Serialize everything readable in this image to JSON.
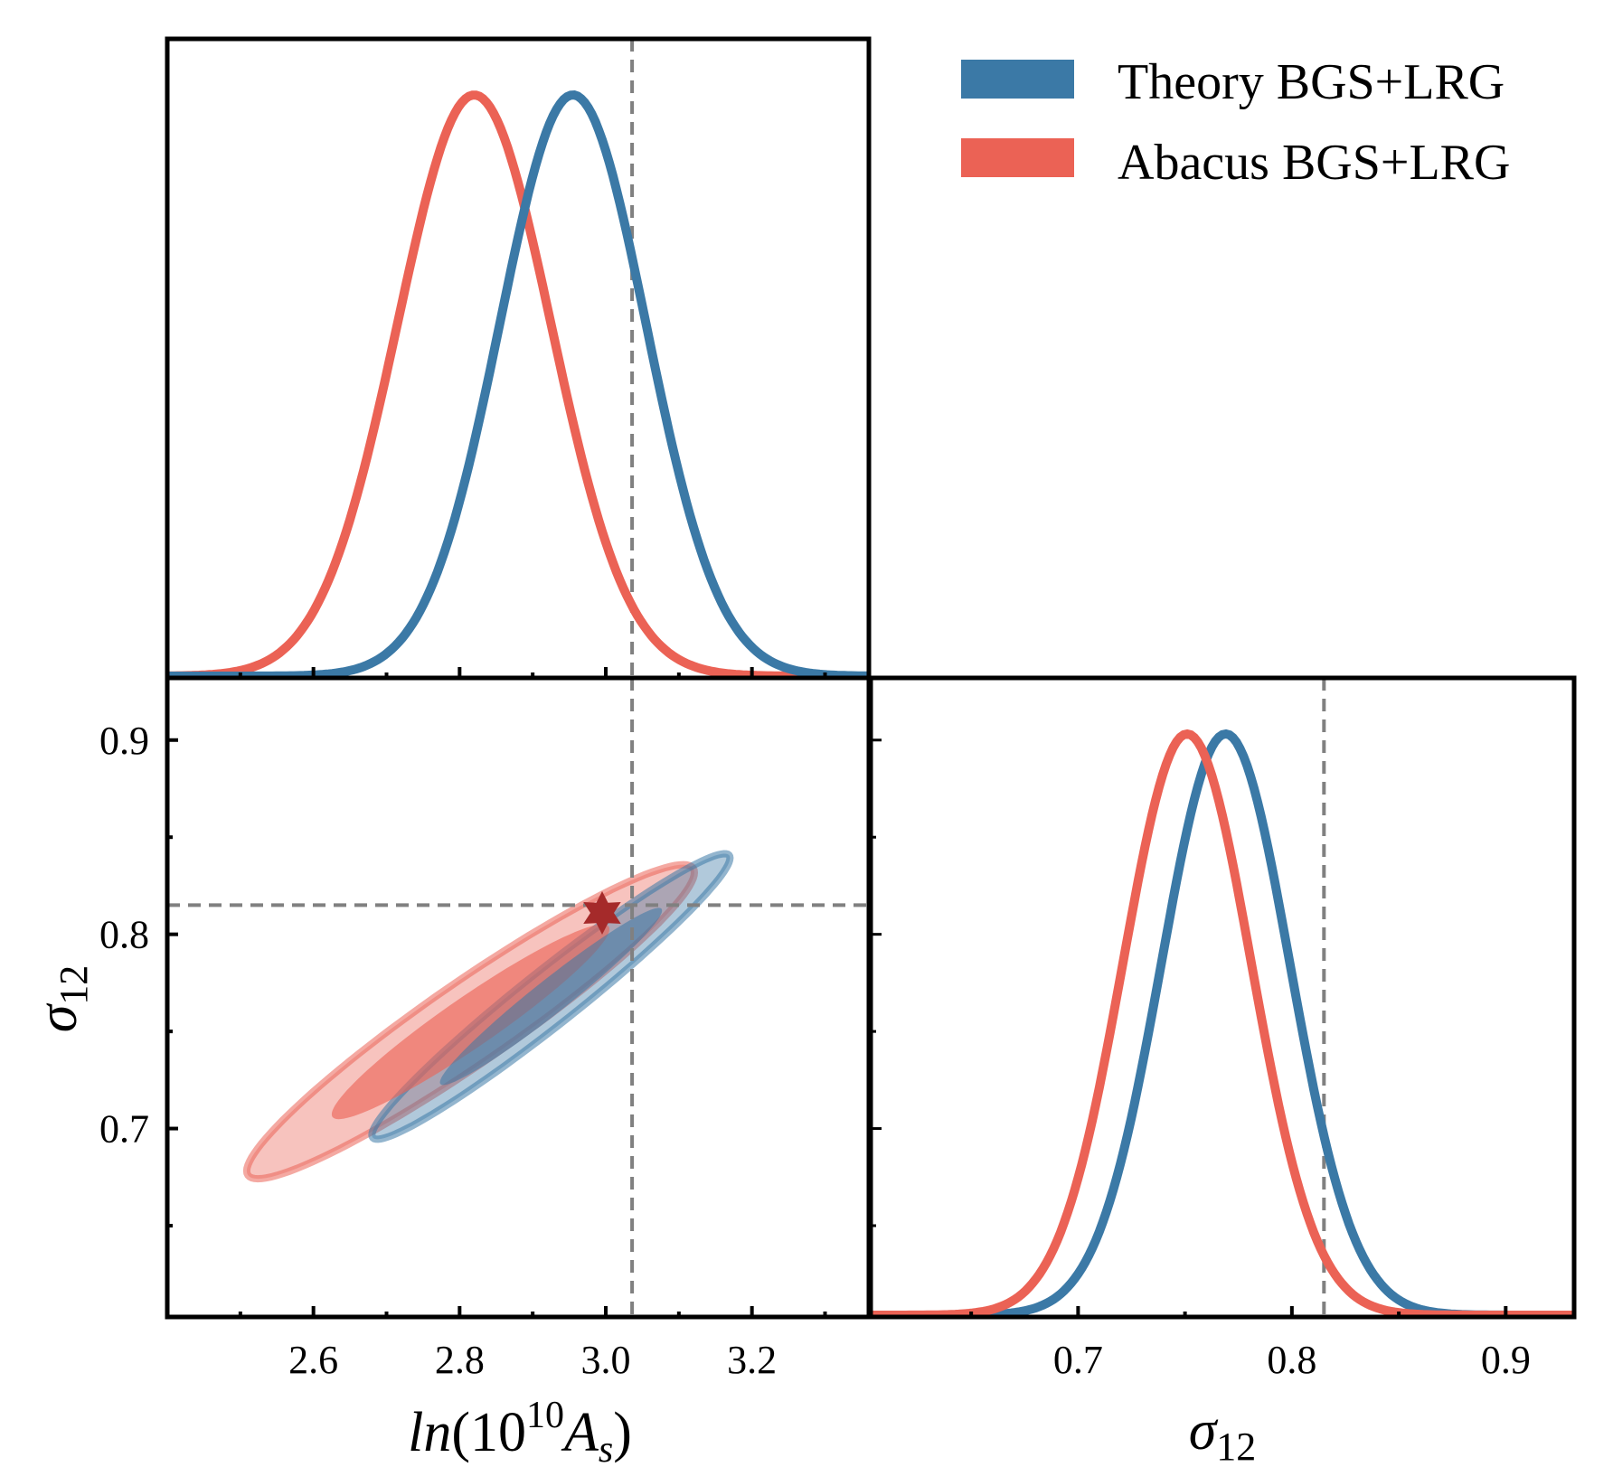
{
  "chart_data": {
    "type": "corner",
    "title": "",
    "parameters": [
      {
        "key": "lnAs",
        "label_main": "ln(10",
        "label_sup": "10",
        "label_sym": "A",
        "label_sub": "s",
        "label_close": ")",
        "range": [
          2.4,
          3.36
        ],
        "ticks": [
          2.6,
          2.8,
          3.0,
          3.2
        ],
        "tick_labels": [
          "2.6",
          "2.8",
          "3.0",
          "3.2"
        ],
        "fiducial": 3.036
      },
      {
        "key": "sigma12",
        "label_sym": "σ",
        "label_sub": "12",
        "range": [
          0.603,
          0.932
        ],
        "ticks": [
          0.7,
          0.8,
          0.9
        ],
        "tick_labels": [
          "0.7",
          "0.8",
          "0.9"
        ],
        "fiducial": 0.815
      }
    ],
    "legend": {
      "placement": "top-right"
    },
    "series": [
      {
        "name": "Theory BGS+LRG",
        "color": "#3b79a6",
        "marginal_lnAs": {
          "mean": 2.955,
          "sigma": 0.1
        },
        "marginal_sigma12": {
          "mean": 0.769,
          "sigma": 0.03
        },
        "contour": {
          "center": [
            2.925,
            0.768
          ],
          "correlation": 0.97,
          "sigma": [
            0.1,
            0.03
          ]
        }
      },
      {
        "name": "Abacus BGS+LRG",
        "color": "#eb6255",
        "marginal_lnAs": {
          "mean": 2.82,
          "sigma": 0.105
        },
        "marginal_sigma12": {
          "mean": 0.751,
          "sigma": 0.03
        },
        "contour": {
          "center": [
            2.815,
            0.755
          ],
          "correlation": 0.95,
          "sigma": [
            0.125,
            0.033
          ]
        }
      }
    ],
    "best_fit_marker": {
      "lnAs": 2.995,
      "sigma12": 0.811,
      "color": "#a52a2a",
      "shape": "star"
    }
  }
}
